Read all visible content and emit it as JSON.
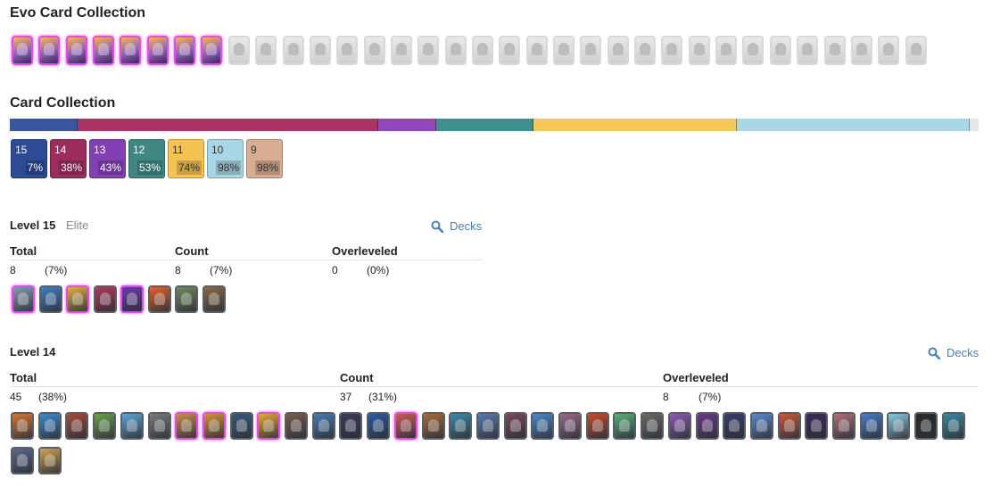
{
  "evo_section": {
    "title": "Evo Card Collection",
    "owned_count": 8,
    "total_count": 34
  },
  "collection": {
    "title": "Card Collection",
    "bar": [
      {
        "level": 15,
        "color": "#3a55a0",
        "share": 0.07
      },
      {
        "level": 14,
        "color": "#a83463",
        "share": 0.31
      },
      {
        "level": 13,
        "color": "#8f49b8",
        "share": 0.06
      },
      {
        "level": 12,
        "color": "#3e8f8d",
        "share": 0.1
      },
      {
        "level": 11,
        "color": "#f6c75b",
        "share": 0.21
      },
      {
        "level": 10,
        "color": "#a8d8e6",
        "share": 0.24
      }
    ],
    "levels": [
      {
        "num": "15",
        "pct": "7%",
        "color": "#2d4b94"
      },
      {
        "num": "14",
        "pct": "38%",
        "color": "#9b2d5c"
      },
      {
        "num": "13",
        "pct": "43%",
        "color": "#8440b2"
      },
      {
        "num": "12",
        "pct": "53%",
        "color": "#3f8783"
      },
      {
        "num": "11",
        "pct": "74%",
        "color": "#f5c354"
      },
      {
        "num": "10",
        "pct": "98%",
        "color": "#a9d6e5"
      },
      {
        "num": "9",
        "pct": "98%",
        "color": "#d9ad92"
      }
    ]
  },
  "level15": {
    "title": "Level 15",
    "subtitle": "Elite",
    "decks_label": "Decks",
    "headers": {
      "total": "Total",
      "count": "Count",
      "overleveled": "Overleveled"
    },
    "total": {
      "value": "8",
      "pct": "(7%)"
    },
    "count": {
      "value": "8",
      "pct": "(7%)"
    },
    "overleveled": {
      "value": "0",
      "pct": "(0%)"
    },
    "cards": [
      {
        "name": "skeleton-army-card",
        "evo": true,
        "color": "#8a9bb0"
      },
      {
        "name": "ice-spirit-card",
        "evo": false,
        "color": "#3f7fc9"
      },
      {
        "name": "goblin-card",
        "evo": true,
        "color": "#e0b13a"
      },
      {
        "name": "archer-queen-card",
        "evo": false,
        "color": "#b13a5f"
      },
      {
        "name": "electro-card",
        "evo": true,
        "color": "#6a3aa8"
      },
      {
        "name": "fireball-card",
        "evo": false,
        "color": "#e2622a"
      },
      {
        "name": "goblin-barrel-card",
        "evo": false,
        "color": "#6f8b5a"
      },
      {
        "name": "log-card",
        "evo": false,
        "color": "#8b6a44"
      }
    ]
  },
  "level14": {
    "title": "Level 14",
    "decks_label": "Decks",
    "headers": {
      "total": "Total",
      "count": "Count",
      "overleveled": "Overleveled"
    },
    "total": {
      "value": "45",
      "pct": "(38%)"
    },
    "count": {
      "value": "37",
      "pct": "(31%)"
    },
    "overleveled": {
      "value": "8",
      "pct": "(7%)"
    },
    "cards": [
      {
        "name": "card-1",
        "evo": false,
        "color": "#d6793a"
      },
      {
        "name": "card-2",
        "evo": false,
        "color": "#3c8ad2"
      },
      {
        "name": "card-3",
        "evo": false,
        "color": "#a84a3c"
      },
      {
        "name": "card-4",
        "evo": false,
        "color": "#6aa04a"
      },
      {
        "name": "card-5",
        "evo": false,
        "color": "#5aa6d6"
      },
      {
        "name": "card-6",
        "evo": false,
        "color": "#7a7a7a"
      },
      {
        "name": "card-7",
        "evo": true,
        "color": "#c88c4a"
      },
      {
        "name": "card-8",
        "evo": true,
        "color": "#d2913a"
      },
      {
        "name": "card-9",
        "evo": false,
        "color": "#3a5a7a"
      },
      {
        "name": "card-10",
        "evo": true,
        "color": "#e3a83a"
      },
      {
        "name": "card-11",
        "evo": false,
        "color": "#7a5a4a"
      },
      {
        "name": "card-12",
        "evo": false,
        "color": "#4a7ab0"
      },
      {
        "name": "card-13",
        "evo": false,
        "color": "#3a3a5a"
      },
      {
        "name": "card-14",
        "evo": false,
        "color": "#2a5aa0"
      },
      {
        "name": "card-15",
        "evo": true,
        "color": "#c85a5a"
      },
      {
        "name": "card-16",
        "evo": false,
        "color": "#a86a3a"
      },
      {
        "name": "card-17",
        "evo": false,
        "color": "#3a8aa8"
      },
      {
        "name": "card-18",
        "evo": false,
        "color": "#5a7ab0"
      },
      {
        "name": "card-19",
        "evo": false,
        "color": "#7a4a5a"
      },
      {
        "name": "card-20",
        "evo": false,
        "color": "#4a8ac8"
      },
      {
        "name": "card-21",
        "evo": false,
        "color": "#9a6a8a"
      },
      {
        "name": "card-22",
        "evo": false,
        "color": "#c84a2a"
      },
      {
        "name": "card-23",
        "evo": false,
        "color": "#5ab07a"
      },
      {
        "name": "card-24",
        "evo": false,
        "color": "#6a6a6a"
      },
      {
        "name": "card-25",
        "evo": false,
        "color": "#8a5ab0"
      },
      {
        "name": "card-26",
        "evo": false,
        "color": "#6a3a8a"
      },
      {
        "name": "card-27",
        "evo": false,
        "color": "#3a3a6a"
      },
      {
        "name": "card-28",
        "evo": false,
        "color": "#5a8ad2"
      },
      {
        "name": "card-29",
        "evo": false,
        "color": "#c85a3a"
      },
      {
        "name": "card-30",
        "evo": false,
        "color": "#3a2a5a"
      },
      {
        "name": "card-31",
        "evo": false,
        "color": "#b0707a"
      },
      {
        "name": "card-32",
        "evo": false,
        "color": "#4a7ac8"
      },
      {
        "name": "card-33",
        "evo": false,
        "color": "#8ac8e0"
      },
      {
        "name": "card-34",
        "evo": false,
        "color": "#2a2a2a"
      },
      {
        "name": "card-35",
        "evo": false,
        "color": "#3a8aa0"
      },
      {
        "name": "card-36",
        "evo": false,
        "color": "#5a6a8a"
      },
      {
        "name": "card-37",
        "evo": false,
        "color": "#d2a04a"
      }
    ]
  }
}
